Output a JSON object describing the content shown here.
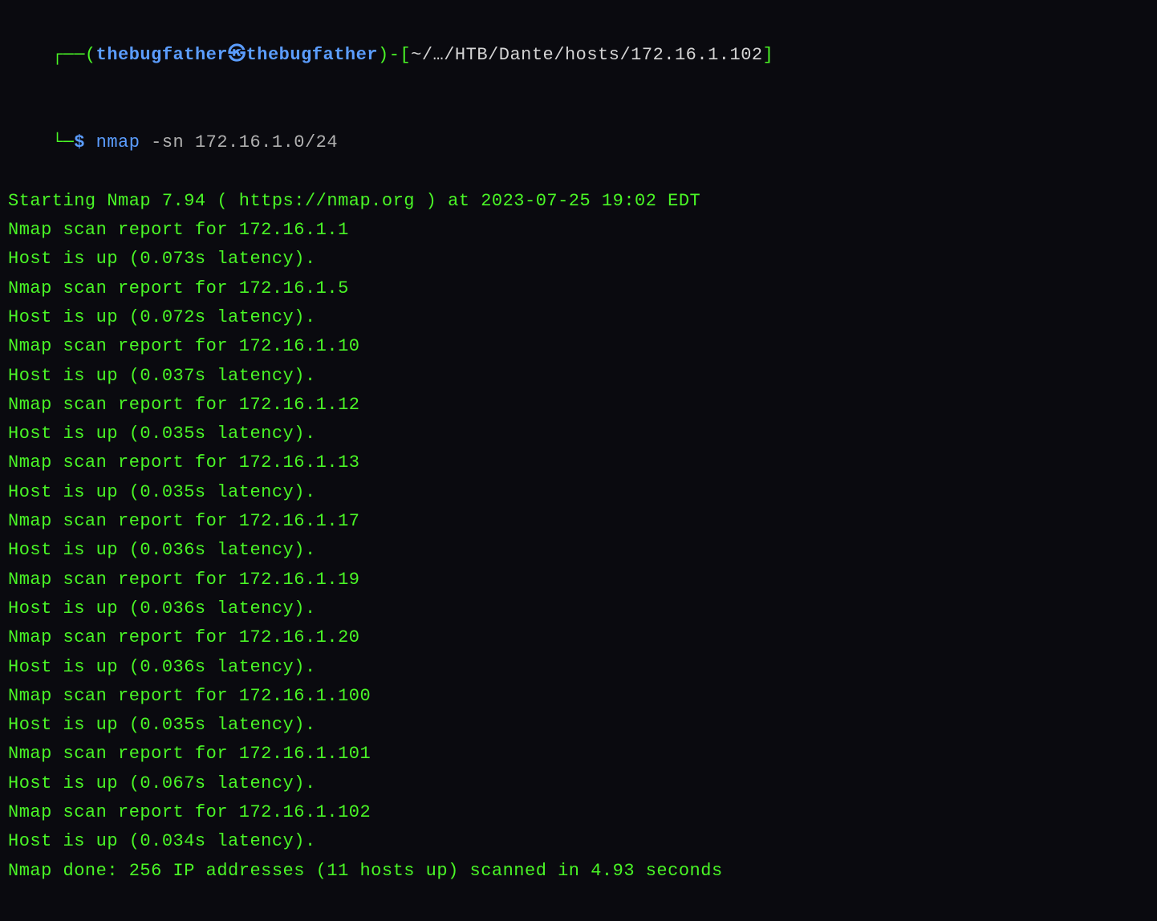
{
  "colors": {
    "background": "#0a0a0f",
    "text_green": "#4af626",
    "text_blue": "#5b9dff",
    "text_gray": "#b0b0b0",
    "text_white": "#d4d4d4"
  },
  "prompt": {
    "open_bracket": "┌──(",
    "user": "thebugfather",
    "at": "㉿",
    "host": "thebugfather",
    "close_paren": ")",
    "dash": "-",
    "open_sq": "[",
    "path": "~/…/HTB/Dante/hosts/172.16.1.102",
    "close_sq": "]",
    "line2_prefix": "└─",
    "dollar": "$ ",
    "command": "nmap",
    "args": " -sn 172.16.1.0/24"
  },
  "output": {
    "start": "Starting Nmap 7.94 ( https://nmap.org ) at 2023-07-25 19:02 EDT",
    "hosts": [
      {
        "report": "Nmap scan report for 172.16.1.1",
        "status": "Host is up (0.073s latency)."
      },
      {
        "report": "Nmap scan report for 172.16.1.5",
        "status": "Host is up (0.072s latency)."
      },
      {
        "report": "Nmap scan report for 172.16.1.10",
        "status": "Host is up (0.037s latency)."
      },
      {
        "report": "Nmap scan report for 172.16.1.12",
        "status": "Host is up (0.035s latency)."
      },
      {
        "report": "Nmap scan report for 172.16.1.13",
        "status": "Host is up (0.035s latency)."
      },
      {
        "report": "Nmap scan report for 172.16.1.17",
        "status": "Host is up (0.036s latency)."
      },
      {
        "report": "Nmap scan report for 172.16.1.19",
        "status": "Host is up (0.036s latency)."
      },
      {
        "report": "Nmap scan report for 172.16.1.20",
        "status": "Host is up (0.036s latency)."
      },
      {
        "report": "Nmap scan report for 172.16.1.100",
        "status": "Host is up (0.035s latency)."
      },
      {
        "report": "Nmap scan report for 172.16.1.101",
        "status": "Host is up (0.067s latency)."
      },
      {
        "report": "Nmap scan report for 172.16.1.102",
        "status": "Host is up (0.034s latency)."
      }
    ],
    "done": "Nmap done: 256 IP addresses (11 hosts up) scanned in 4.93 seconds"
  }
}
